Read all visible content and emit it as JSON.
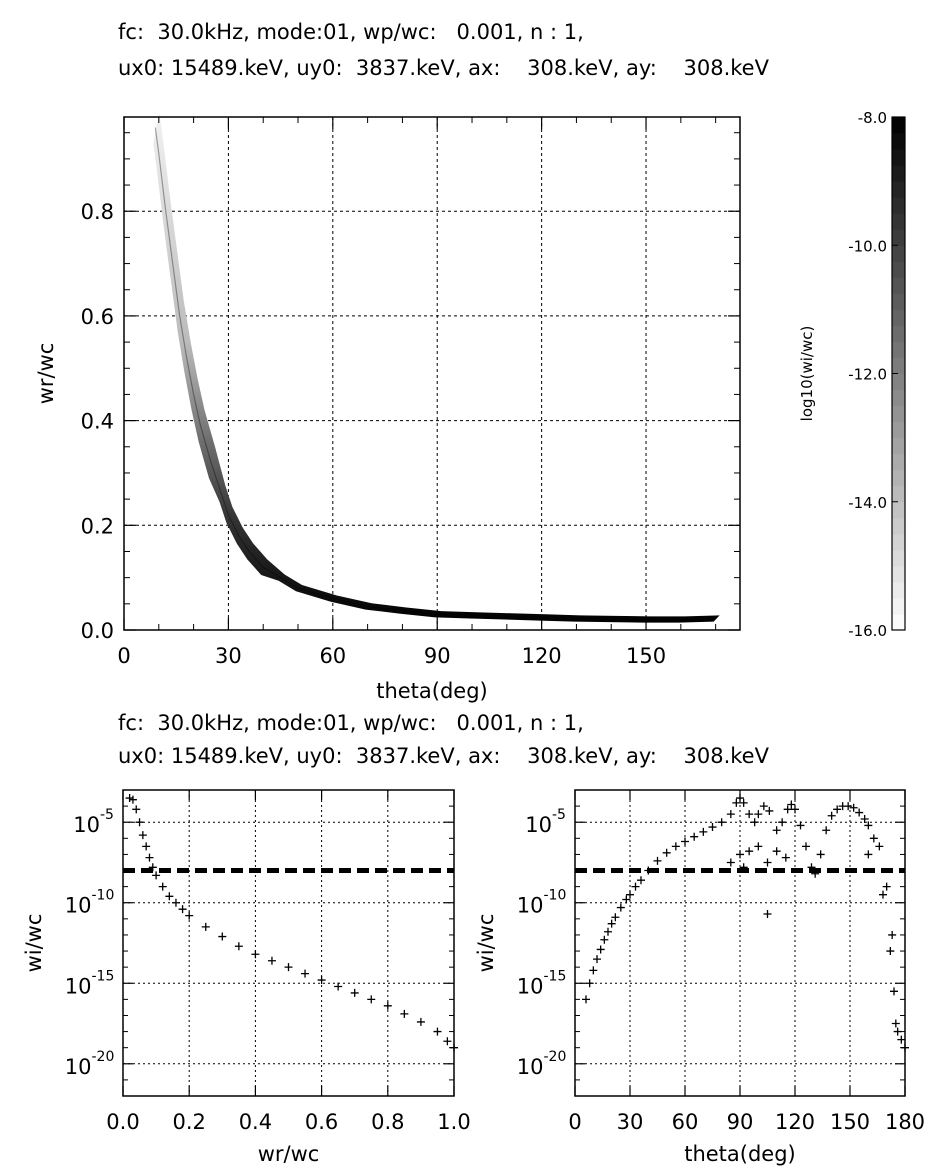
{
  "headers": {
    "top_line1": "fc:  30.0kHz, mode:01, wp/wc:   0.001, n : 1,",
    "top_line2": "ux0: 15489.keV, uy0:  3837.keV, ax:    308.keV, ay:    308.keV",
    "bottom_line1": "fc:  30.0kHz, mode:01, wp/wc:   0.001, n : 1,",
    "bottom_line2": "ux0: 15489.keV, uy0:  3837.keV, ax:    308.keV, ay:    308.keV"
  },
  "chart_data": [
    {
      "type": "heatmap",
      "xlabel": "theta(deg)",
      "ylabel": "wr/wc",
      "xlim": [
        0,
        177
      ],
      "ylim": [
        0,
        0.98
      ],
      "xticks": [
        0,
        30,
        60,
        90,
        120,
        150
      ],
      "xtick_labels": [
        "0",
        "30",
        "60",
        "90",
        "120",
        "150"
      ],
      "yticks": [
        0,
        0.2,
        0.4,
        0.6,
        0.8
      ],
      "ytick_labels": [
        "0.0",
        "0.2",
        "0.4",
        "0.6",
        "0.8"
      ],
      "grid": true,
      "colorbar": {
        "label": "log10(wi/wc)",
        "range": [
          -16,
          -8
        ],
        "ticks": [
          -16,
          -14,
          -12,
          -10,
          -8
        ],
        "tick_labels": [
          "-16.0",
          "-14.0",
          "-12.0",
          "-10.0",
          "-8.0"
        ]
      },
      "curve": {
        "theta": [
          9,
          10,
          12,
          14,
          16,
          18,
          20,
          22,
          25,
          28,
          30,
          33,
          36,
          40,
          45,
          50,
          55,
          60,
          70,
          80,
          90,
          100,
          110,
          120,
          130,
          140,
          150,
          160,
          170
        ],
        "wr_wc": [
          0.96,
          0.91,
          0.8,
          0.7,
          0.6,
          0.52,
          0.45,
          0.39,
          0.32,
          0.26,
          0.22,
          0.18,
          0.15,
          0.12,
          0.1,
          0.08,
          0.07,
          0.06,
          0.045,
          0.037,
          0.03,
          0.028,
          0.026,
          0.024,
          0.022,
          0.021,
          0.02,
          0.02,
          0.022
        ]
      }
    },
    {
      "type": "scatter",
      "xlabel": "wr/wc",
      "ylabel": "wi/wc",
      "xlim": [
        0,
        1
      ],
      "ylim_log10": [
        -22,
        -3
      ],
      "xticks": [
        0,
        0.2,
        0.4,
        0.6,
        0.8,
        1.0
      ],
      "xtick_labels": [
        "0.0",
        "0.2",
        "0.4",
        "0.6",
        "0.8",
        "1.0"
      ],
      "yticks_log10": [
        -5,
        -10,
        -15,
        -20
      ],
      "ytick_labels": [
        "10",
        "10",
        "10",
        "10"
      ],
      "ytick_exponents": [
        "-5",
        "-10",
        "-15",
        "-20"
      ],
      "grid": true,
      "threshold_log10": -8,
      "marker": "+",
      "x": [
        0.02,
        0.03,
        0.04,
        0.05,
        0.06,
        0.07,
        0.08,
        0.09,
        0.1,
        0.12,
        0.14,
        0.16,
        0.18,
        0.2,
        0.25,
        0.3,
        0.35,
        0.4,
        0.45,
        0.5,
        0.55,
        0.6,
        0.65,
        0.7,
        0.75,
        0.8,
        0.85,
        0.9,
        0.95,
        0.98,
        1.0
      ],
      "y_log10": [
        -3.5,
        -3.6,
        -4.2,
        -5.0,
        -5.8,
        -6.5,
        -7.2,
        -7.8,
        -8.3,
        -9.0,
        -9.6,
        -10.0,
        -10.4,
        -10.8,
        -11.5,
        -12.1,
        -12.7,
        -13.2,
        -13.6,
        -14.0,
        -14.4,
        -14.8,
        -15.2,
        -15.6,
        -16.0,
        -16.4,
        -16.9,
        -17.4,
        -18.0,
        -18.6,
        -19.0
      ]
    },
    {
      "type": "scatter",
      "xlabel": "theta(deg)",
      "ylabel": "wi/wc",
      "xlim": [
        0,
        180
      ],
      "ylim_log10": [
        -22,
        -3
      ],
      "xticks": [
        0,
        30,
        60,
        90,
        120,
        150,
        180
      ],
      "xtick_labels": [
        "0",
        "30",
        "60",
        "90",
        "120",
        "150",
        "180"
      ],
      "yticks_log10": [
        -5,
        -10,
        -15,
        -20
      ],
      "ytick_labels": [
        "10",
        "10",
        "10",
        "10"
      ],
      "ytick_exponents": [
        "-5",
        "-10",
        "-15",
        "-20"
      ],
      "grid": true,
      "threshold_log10": -8,
      "marker": "+",
      "x": [
        6,
        8,
        10,
        12,
        14,
        16,
        18,
        20,
        22,
        25,
        28,
        30,
        33,
        36,
        40,
        45,
        50,
        55,
        60,
        65,
        70,
        75,
        80,
        85,
        88,
        90,
        92,
        95,
        98,
        100,
        103,
        106,
        110,
        113,
        116,
        118,
        120,
        123,
        126,
        129,
        131,
        134,
        137,
        140,
        143,
        146,
        149,
        152,
        155,
        158,
        160,
        163,
        166,
        170,
        173,
        175,
        176,
        178,
        180,
        85,
        90,
        95,
        100,
        105,
        110,
        115,
        92,
        105,
        160,
        168,
        172,
        174
      ],
      "y_log10": [
        -16.0,
        -15.0,
        -14.2,
        -13.5,
        -12.9,
        -12.3,
        -11.8,
        -11.3,
        -10.9,
        -10.3,
        -9.8,
        -9.5,
        -9.0,
        -8.6,
        -8.0,
        -7.4,
        -6.9,
        -6.5,
        -6.2,
        -5.9,
        -5.6,
        -5.3,
        -5.0,
        -4.5,
        -3.8,
        -3.5,
        -3.8,
        -4.5,
        -5.0,
        -4.5,
        -4.0,
        -4.3,
        -5.5,
        -5.0,
        -4.2,
        -3.9,
        -4.2,
        -5.2,
        -6.5,
        -7.8,
        -8.2,
        -7.0,
        -5.5,
        -4.6,
        -4.2,
        -4.0,
        -4.0,
        -4.1,
        -4.4,
        -4.8,
        -5.2,
        -6.0,
        -6.5,
        -9.0,
        -12.0,
        -17.5,
        -18.0,
        -18.5,
        -19.0,
        -7.5,
        -7.0,
        -6.8,
        -6.5,
        -7.5,
        -6.8,
        -7.2,
        -7.8,
        -10.7,
        -7.0,
        -9.5,
        -13.0,
        -15.5
      ]
    }
  ]
}
